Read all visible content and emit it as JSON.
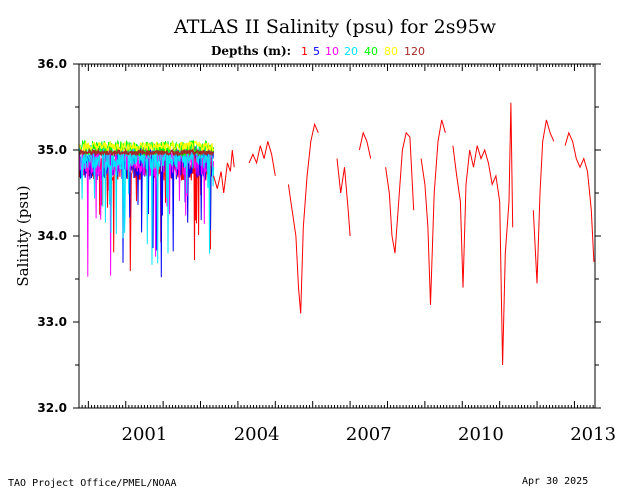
{
  "chart_data": {
    "type": "line",
    "title": "ATLAS II Salinity (psu) for 2s95w",
    "depths_label": "Depths (m):",
    "ylabel": "Salinity (psu)",
    "xlabel": "",
    "ylim": [
      32.0,
      36.0
    ],
    "xlim": [
      1999.75,
      2013.55
    ],
    "yticks": [
      "36.0",
      "35.0",
      "34.0",
      "33.0",
      "32.0"
    ],
    "xticks": [
      "2001",
      "2004",
      "2007",
      "2010",
      "2013"
    ],
    "grid": false,
    "legend_placement": "top-center",
    "series": [
      {
        "name": "1",
        "color": "#ff0000"
      },
      {
        "name": "5",
        "color": "#0000ff"
      },
      {
        "name": "10",
        "color": "#ff00ff"
      },
      {
        "name": "20",
        "color": "#00e5ff"
      },
      {
        "name": "40",
        "color": "#00ff00"
      },
      {
        "name": "80",
        "color": "#ffff00"
      },
      {
        "name": "120",
        "color": "#a52a2a"
      }
    ],
    "red_segments": [
      [
        [
          2003.35,
          34.7
        ],
        [
          2003.45,
          34.55
        ],
        [
          2003.55,
          34.75
        ],
        [
          2003.62,
          34.5
        ],
        [
          2003.72,
          34.85
        ],
        [
          2003.8,
          34.75
        ],
        [
          2003.85,
          35.0
        ],
        [
          2003.9,
          34.8
        ]
      ],
      [
        [
          2004.3,
          34.85
        ],
        [
          2004.4,
          34.95
        ],
        [
          2004.5,
          34.85
        ],
        [
          2004.6,
          35.05
        ],
        [
          2004.7,
          34.9
        ],
        [
          2004.8,
          35.1
        ],
        [
          2004.9,
          34.95
        ],
        [
          2005.0,
          34.7
        ]
      ],
      [
        [
          2005.35,
          34.6
        ],
        [
          2005.45,
          34.3
        ],
        [
          2005.55,
          34.0
        ],
        [
          2005.62,
          33.4
        ],
        [
          2005.68,
          33.1
        ],
        [
          2005.75,
          34.1
        ],
        [
          2005.85,
          34.7
        ],
        [
          2005.95,
          35.1
        ],
        [
          2006.05,
          35.3
        ],
        [
          2006.15,
          35.2
        ]
      ],
      [
        [
          2006.65,
          34.9
        ],
        [
          2006.75,
          34.5
        ],
        [
          2006.85,
          34.8
        ],
        [
          2006.95,
          34.3
        ],
        [
          2007.0,
          34.0
        ]
      ],
      [
        [
          2007.25,
          35.0
        ],
        [
          2007.35,
          35.2
        ],
        [
          2007.45,
          35.1
        ],
        [
          2007.55,
          34.9
        ]
      ],
      [
        [
          2007.95,
          34.8
        ],
        [
          2008.05,
          34.5
        ],
        [
          2008.12,
          34.0
        ],
        [
          2008.2,
          33.8
        ],
        [
          2008.3,
          34.4
        ],
        [
          2008.4,
          35.0
        ],
        [
          2008.5,
          35.2
        ],
        [
          2008.6,
          35.15
        ],
        [
          2008.7,
          34.3
        ]
      ],
      [
        [
          2008.9,
          34.9
        ],
        [
          2009.0,
          34.6
        ],
        [
          2009.08,
          34.1
        ],
        [
          2009.15,
          33.2
        ],
        [
          2009.25,
          34.5
        ],
        [
          2009.35,
          35.1
        ],
        [
          2009.45,
          35.35
        ],
        [
          2009.55,
          35.2
        ]
      ],
      [
        [
          2009.75,
          35.05
        ],
        [
          2009.85,
          34.7
        ],
        [
          2009.95,
          34.4
        ],
        [
          2010.02,
          33.4
        ],
        [
          2010.1,
          34.6
        ],
        [
          2010.2,
          35.0
        ],
        [
          2010.3,
          34.8
        ],
        [
          2010.4,
          35.05
        ],
        [
          2010.5,
          34.9
        ],
        [
          2010.6,
          35.0
        ],
        [
          2010.7,
          34.85
        ],
        [
          2010.8,
          34.6
        ],
        [
          2010.9,
          34.7
        ],
        [
          2011.0,
          34.4
        ],
        [
          2011.08,
          32.5
        ],
        [
          2011.15,
          33.8
        ],
        [
          2011.25,
          34.4
        ],
        [
          2011.3,
          35.55
        ],
        [
          2011.35,
          34.1
        ]
      ],
      [
        [
          2011.9,
          34.3
        ],
        [
          2012.0,
          33.45
        ],
        [
          2012.08,
          34.5
        ],
        [
          2012.15,
          35.1
        ],
        [
          2012.25,
          35.35
        ],
        [
          2012.35,
          35.2
        ],
        [
          2012.45,
          35.1
        ]
      ],
      [
        [
          2012.75,
          35.05
        ],
        [
          2012.85,
          35.2
        ],
        [
          2012.95,
          35.1
        ],
        [
          2013.05,
          34.9
        ],
        [
          2013.15,
          34.8
        ],
        [
          2013.25,
          34.9
        ],
        [
          2013.35,
          34.75
        ],
        [
          2013.45,
          34.3
        ],
        [
          2013.52,
          33.7
        ]
      ]
    ],
    "early_period": {
      "start": 1999.75,
      "end": 2003.35,
      "mean": 34.97
    }
  },
  "footer": {
    "left": "TAO Project Office/PMEL/NOAA",
    "right": "Apr 30 2025"
  }
}
